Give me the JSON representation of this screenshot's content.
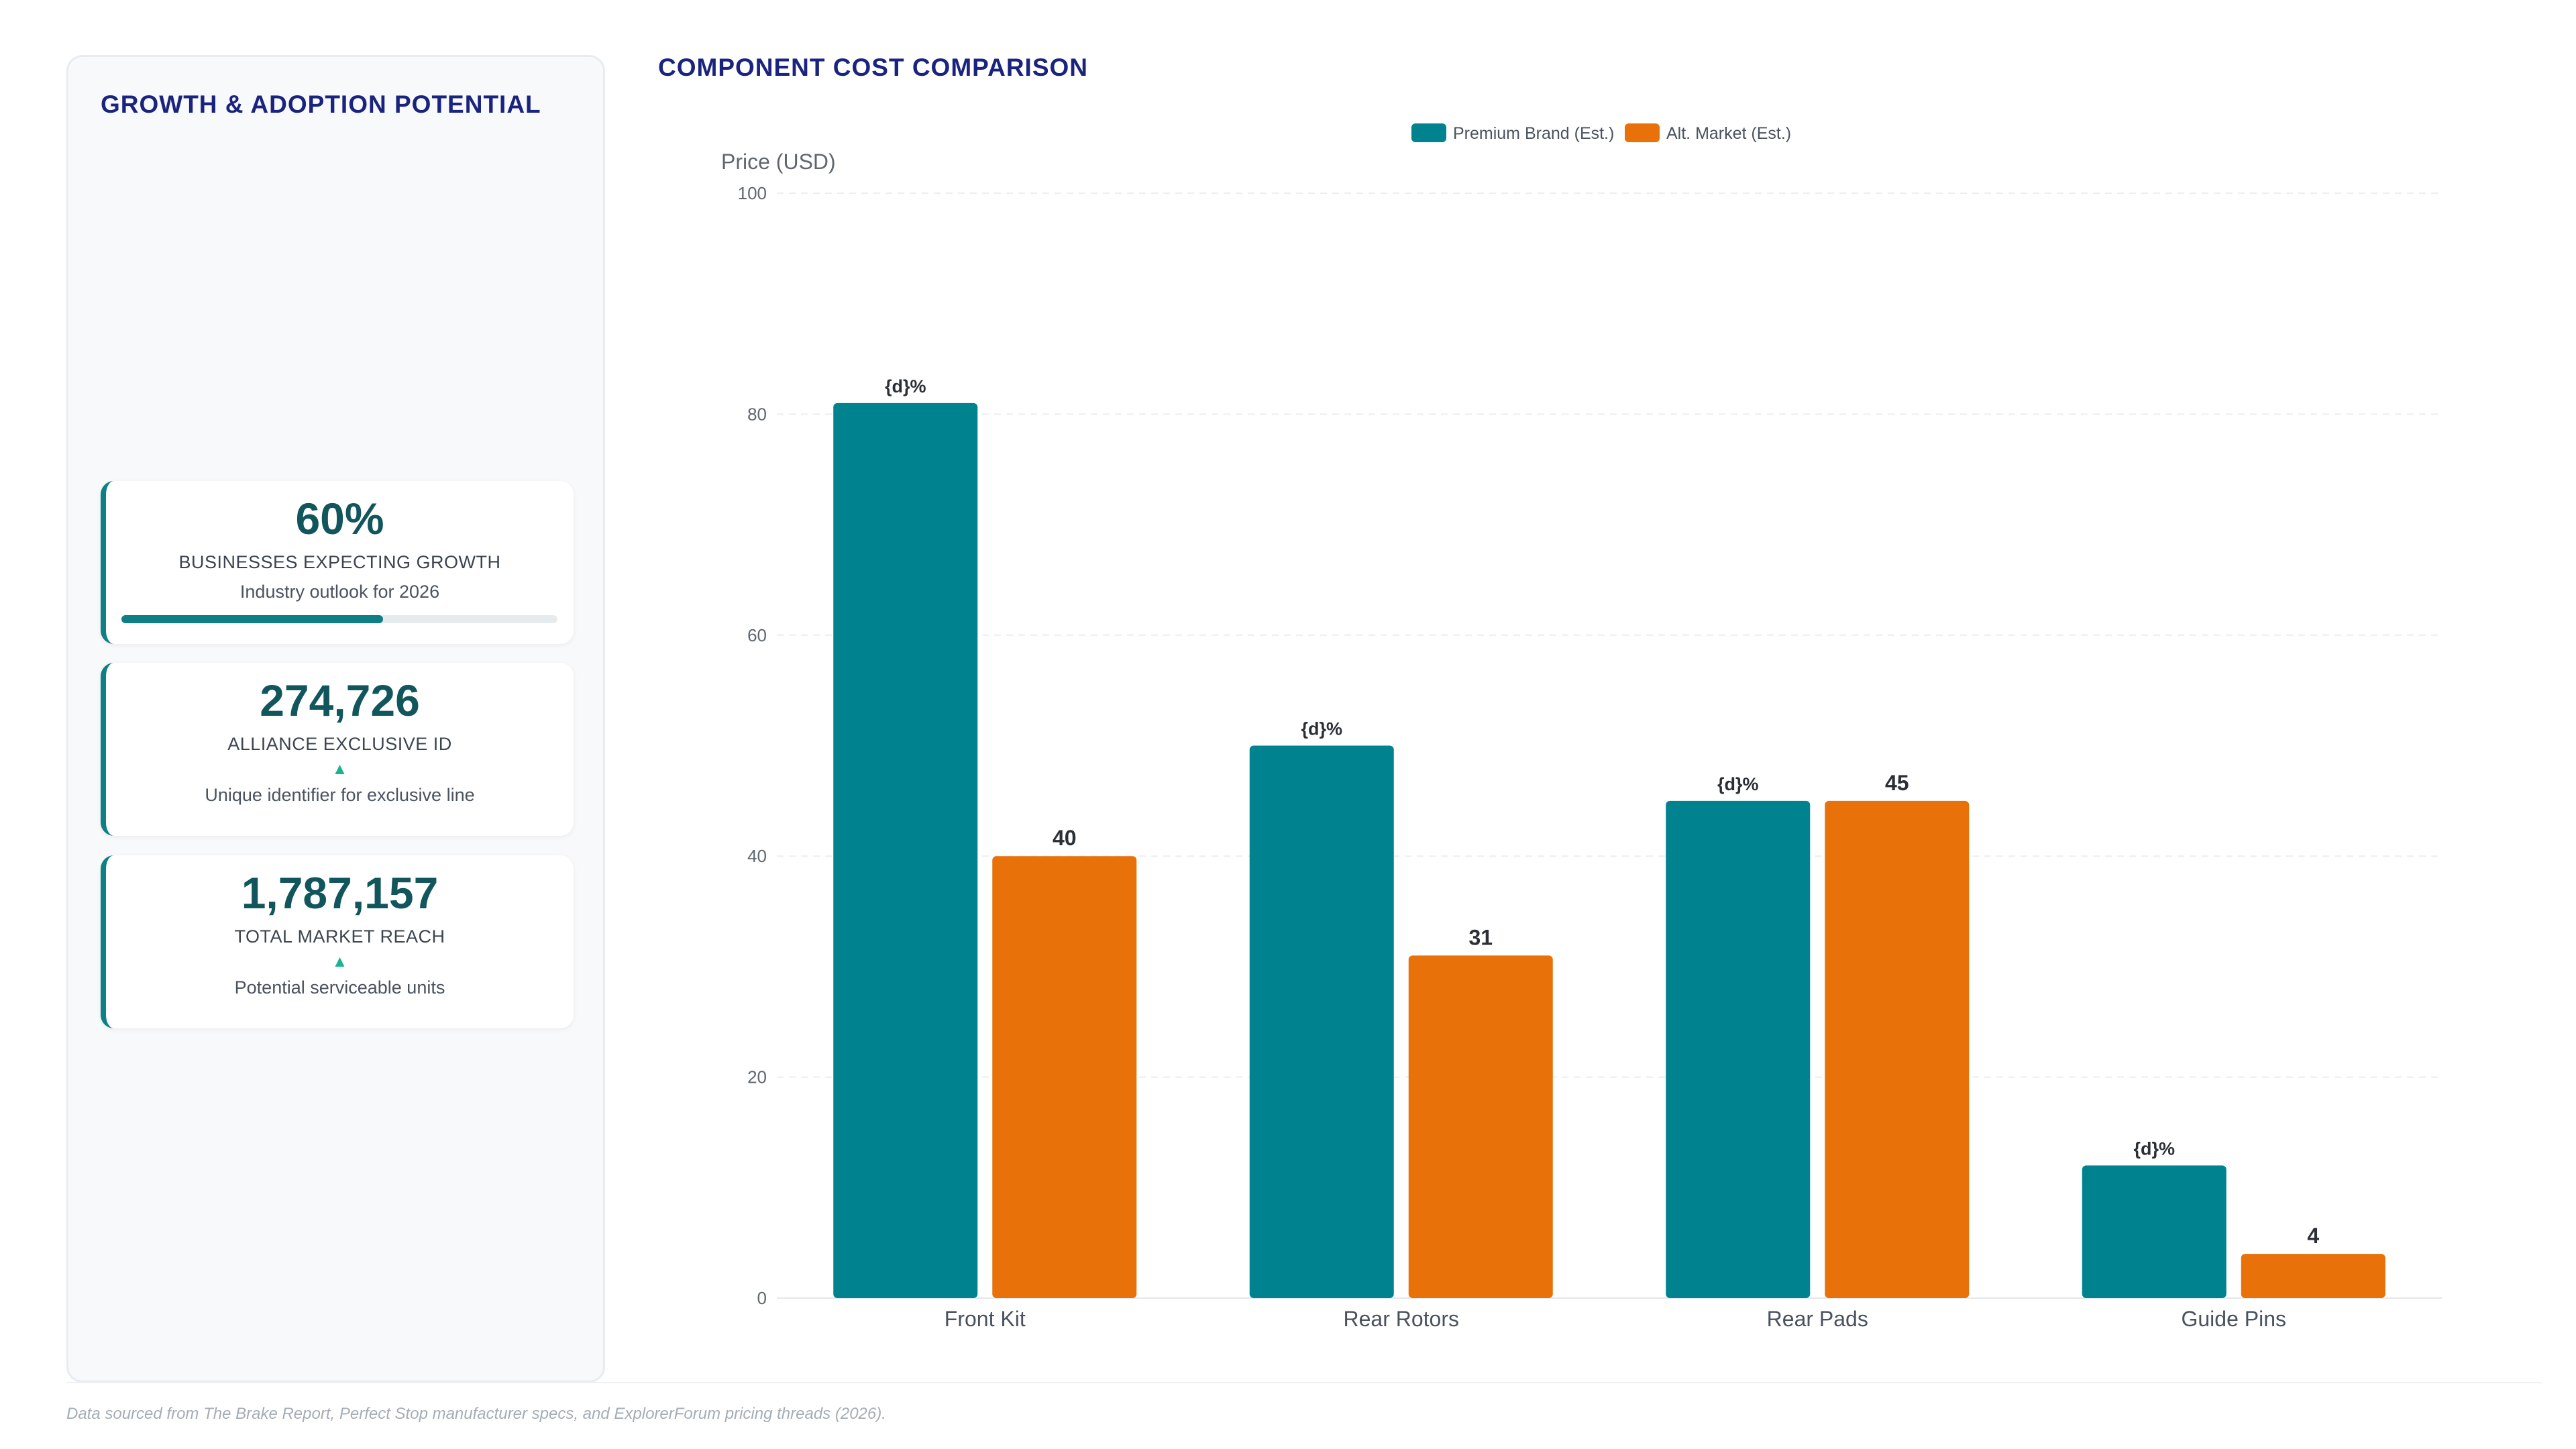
{
  "left_panel": {
    "title": "GROWTH & ADOPTION POTENTIAL",
    "kpis": [
      {
        "value": "60%",
        "label": "BUSINESSES EXPECTING GROWTH",
        "sub": "Industry outlook for 2026",
        "progress": 0.6
      },
      {
        "value": "274,726",
        "label": "ALLIANCE EXCLUSIVE ID",
        "trend": "▲",
        "sub": "Unique identifier for exclusive line"
      },
      {
        "value": "1,787,157",
        "label": "TOTAL MARKET REACH",
        "trend": "▲",
        "sub": "Potential serviceable units"
      }
    ]
  },
  "chart_data": {
    "type": "bar",
    "title": "COMPONENT COST COMPARISON",
    "ylabel": "Price (USD)",
    "xlabel": "",
    "ylim": [
      0,
      100
    ],
    "yticks": [
      0,
      20,
      40,
      60,
      80,
      100
    ],
    "categories": [
      "Front Kit",
      "Rear Rotors",
      "Rear Pads",
      "Guide Pins"
    ],
    "series": [
      {
        "name": "Premium Brand (Est.)",
        "color": "#00838f",
        "values": [
          81,
          50,
          45,
          12
        ],
        "data_labels": [
          "{d}%",
          "{d}%",
          "{d}%",
          "{d}%"
        ]
      },
      {
        "name": "Alt. Market (Est.)",
        "color": "#e8710a",
        "values": [
          40,
          31,
          45,
          4
        ],
        "data_labels": [
          "40",
          "31",
          "45",
          "4"
        ]
      }
    ],
    "legend_position": "top-center",
    "grid": true
  },
  "footer": "Data sourced from The Brake Report, Perfect Stop manufacturer specs, and ExplorerForum pricing threads (2026)."
}
